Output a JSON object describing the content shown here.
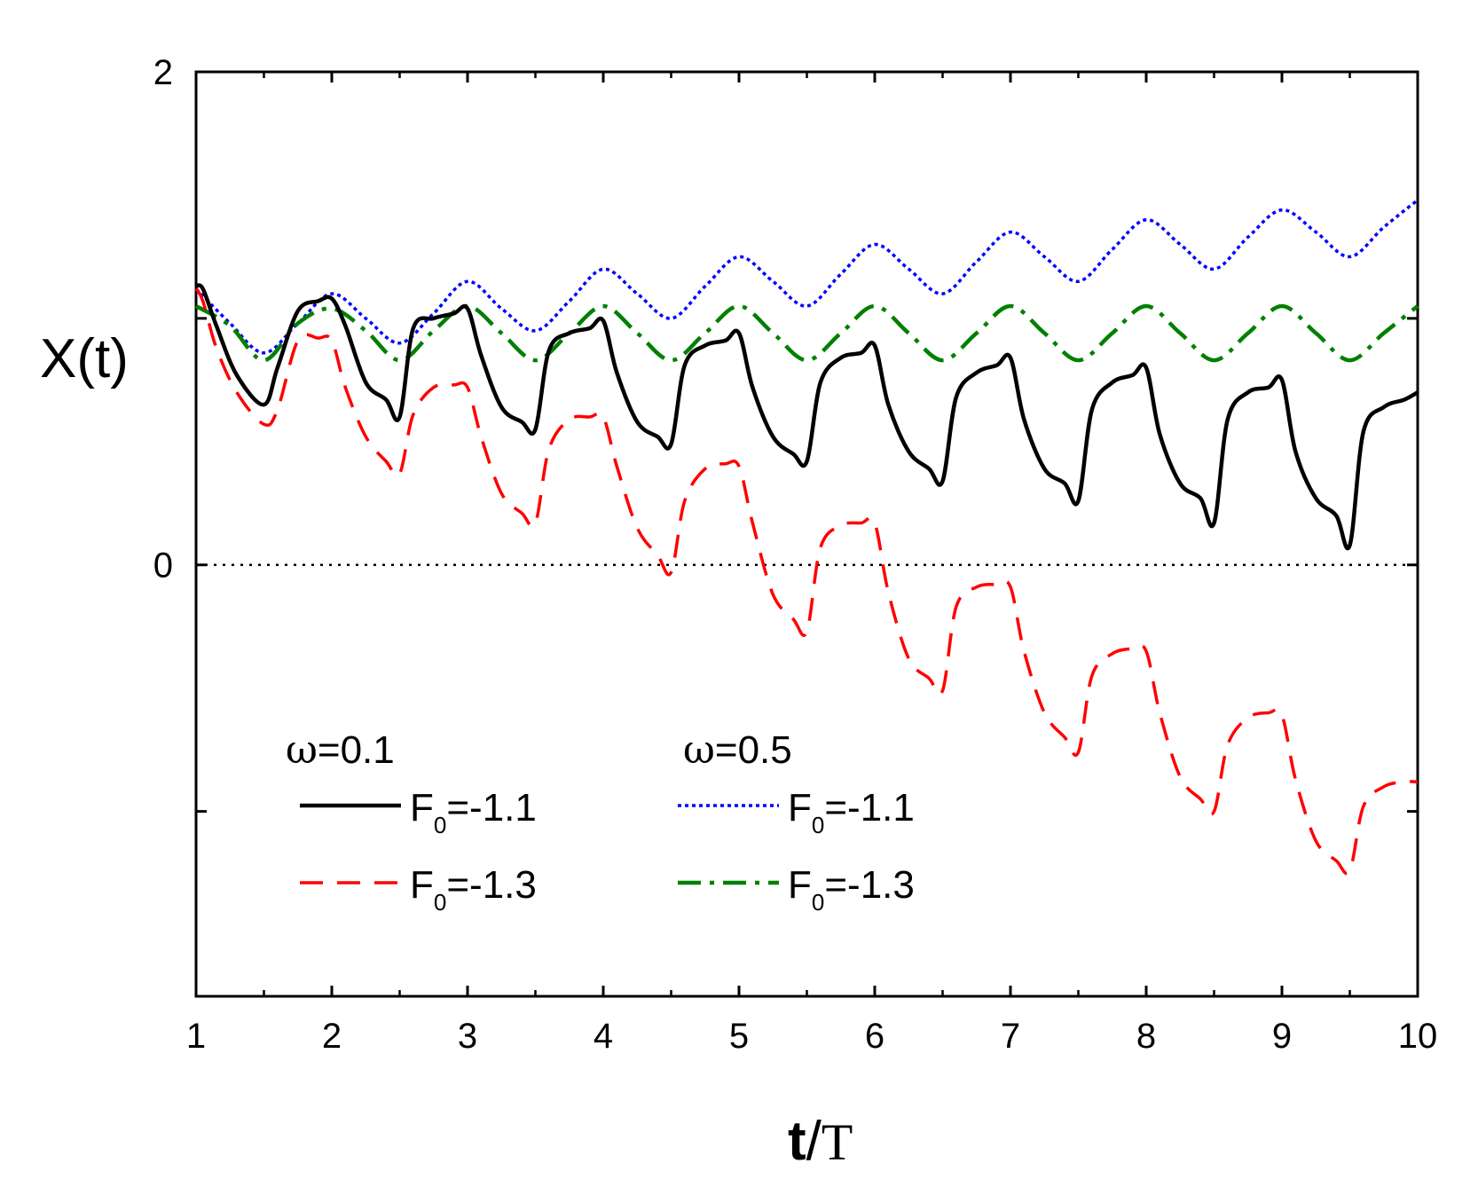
{
  "chart_data": {
    "type": "line",
    "xlabel": {
      "main": "t",
      "slash": "/",
      "serif": "T"
    },
    "ylabel": "X(t)",
    "xlim": [
      1,
      10
    ],
    "ylim": [
      -1.75,
      2
    ],
    "xticks": [
      1,
      2,
      3,
      4,
      5,
      6,
      7,
      8,
      9,
      10
    ],
    "yticks_labeled": [
      0,
      2
    ],
    "yticks_minor": [
      -1,
      1
    ],
    "reference_line": {
      "y": 0,
      "style": "dotted",
      "color": "#000000"
    },
    "legend": {
      "groups": [
        {
          "header": {
            "symbol": "ω",
            "text": "=0.1"
          }
        },
        {
          "header": {
            "symbol": "ω",
            "text": "=0.5"
          }
        }
      ],
      "entry_prefix": "F",
      "entry_sub": "0"
    },
    "series": [
      {
        "name": "F0=-1.1, ω=0.1",
        "group": 0,
        "label_value": "=-1.1",
        "color": "#000000",
        "style": "solid",
        "x": [
          1.0,
          1.05,
          1.15,
          1.3,
          1.5,
          1.6,
          1.75,
          1.9,
          2.0,
          2.1,
          2.25,
          2.4,
          2.5,
          2.6,
          2.75,
          2.9,
          3.0,
          3.1,
          3.25,
          3.4,
          3.5,
          3.6,
          3.75,
          3.9,
          4.0,
          4.1,
          4.25,
          4.4,
          4.5,
          4.6,
          4.75,
          4.9,
          5.0,
          5.1,
          5.25,
          5.4,
          5.5,
          5.6,
          5.75,
          5.9,
          6.0,
          6.1,
          6.25,
          6.4,
          6.5,
          6.6,
          6.75,
          6.9,
          7.0,
          7.1,
          7.25,
          7.4,
          7.5,
          7.6,
          7.75,
          7.9,
          8.0,
          8.1,
          8.25,
          8.4,
          8.5,
          8.6,
          8.75,
          8.9,
          9.0,
          9.1,
          9.25,
          9.4,
          9.5,
          9.6,
          9.75,
          9.9,
          10.0
        ],
        "y": [
          1.13,
          1.12,
          0.97,
          0.77,
          0.65,
          0.8,
          1.03,
          1.07,
          1.08,
          0.97,
          0.74,
          0.67,
          0.6,
          0.96,
          1.0,
          1.02,
          1.04,
          0.85,
          0.64,
          0.58,
          0.55,
          0.87,
          0.94,
          0.96,
          0.99,
          0.78,
          0.58,
          0.52,
          0.49,
          0.81,
          0.89,
          0.91,
          0.94,
          0.72,
          0.52,
          0.45,
          0.42,
          0.74,
          0.84,
          0.86,
          0.89,
          0.65,
          0.46,
          0.39,
          0.34,
          0.68,
          0.78,
          0.81,
          0.84,
          0.59,
          0.39,
          0.33,
          0.26,
          0.63,
          0.74,
          0.77,
          0.8,
          0.53,
          0.33,
          0.27,
          0.17,
          0.59,
          0.7,
          0.72,
          0.75,
          0.46,
          0.27,
          0.2,
          0.08,
          0.54,
          0.64,
          0.67,
          0.7
        ]
      },
      {
        "name": "F0=-1.3, ω=0.1",
        "group": 0,
        "label_value": "=-1.3",
        "color": "#ff0000",
        "style": "dashed",
        "x": [
          1.0,
          1.05,
          1.15,
          1.3,
          1.5,
          1.6,
          1.75,
          1.9,
          2.0,
          2.1,
          2.25,
          2.4,
          2.5,
          2.6,
          2.75,
          2.9,
          3.0,
          3.1,
          3.25,
          3.4,
          3.5,
          3.6,
          3.75,
          3.9,
          4.0,
          4.1,
          4.25,
          4.4,
          4.5,
          4.6,
          4.75,
          4.9,
          5.0,
          5.1,
          5.25,
          5.4,
          5.5,
          5.6,
          5.75,
          5.9,
          6.0,
          6.1,
          6.25,
          6.4,
          6.5,
          6.6,
          6.75,
          6.9,
          7.0,
          7.1,
          7.25,
          7.4,
          7.5,
          7.6,
          7.75,
          7.9,
          8.0,
          8.1,
          8.25,
          8.4,
          8.5,
          8.6,
          8.75,
          8.9,
          9.0,
          9.1,
          9.25,
          9.4,
          9.5,
          9.6,
          9.75,
          9.9,
          10.0
        ],
        "y": [
          1.12,
          1.07,
          0.88,
          0.7,
          0.57,
          0.63,
          0.91,
          0.92,
          0.91,
          0.72,
          0.52,
          0.42,
          0.37,
          0.61,
          0.72,
          0.73,
          0.72,
          0.52,
          0.29,
          0.21,
          0.17,
          0.47,
          0.59,
          0.6,
          0.6,
          0.4,
          0.15,
          0.04,
          -0.03,
          0.26,
          0.39,
          0.41,
          0.4,
          0.17,
          -0.12,
          -0.22,
          -0.27,
          0.07,
          0.16,
          0.17,
          0.17,
          -0.11,
          -0.38,
          -0.46,
          -0.51,
          -0.17,
          -0.09,
          -0.08,
          -0.09,
          -0.35,
          -0.6,
          -0.7,
          -0.76,
          -0.45,
          -0.36,
          -0.34,
          -0.35,
          -0.6,
          -0.86,
          -0.95,
          -1.0,
          -0.73,
          -0.62,
          -0.6,
          -0.61,
          -0.87,
          -1.12,
          -1.2,
          -1.24,
          -0.98,
          -0.9,
          -0.88,
          -0.88
        ]
      },
      {
        "name": "F0=-1.1, ω=0.5",
        "group": 1,
        "label_value": "=-1.1",
        "color": "#0000ff",
        "style": "dotted",
        "x": [
          1.0,
          1.25,
          1.5,
          1.75,
          2.0,
          2.25,
          2.5,
          2.75,
          3.0,
          3.25,
          3.5,
          3.75,
          4.0,
          4.25,
          4.5,
          4.75,
          5.0,
          5.25,
          5.5,
          5.75,
          6.0,
          6.25,
          6.5,
          6.75,
          7.0,
          7.25,
          7.5,
          7.75,
          8.0,
          8.25,
          8.5,
          8.75,
          9.0,
          9.25,
          9.5,
          9.75,
          10.0
        ],
        "y": [
          1.12,
          0.98,
          0.86,
          0.98,
          1.1,
          1.0,
          0.9,
          1.02,
          1.15,
          1.04,
          0.95,
          1.07,
          1.2,
          1.1,
          1.0,
          1.13,
          1.25,
          1.15,
          1.05,
          1.18,
          1.3,
          1.2,
          1.1,
          1.23,
          1.35,
          1.25,
          1.15,
          1.28,
          1.4,
          1.3,
          1.2,
          1.33,
          1.44,
          1.35,
          1.25,
          1.37,
          1.48
        ]
      },
      {
        "name": "F0=-1.3, ω=0.5",
        "group": 1,
        "label_value": "=-1.3",
        "color": "#008000",
        "style": "dashdot",
        "x": [
          1.0,
          1.25,
          1.5,
          1.75,
          2.0,
          2.25,
          2.5,
          2.75,
          3.0,
          3.25,
          3.5,
          3.75,
          4.0,
          4.25,
          4.5,
          4.75,
          5.0,
          5.25,
          5.5,
          5.75,
          6.0,
          6.25,
          6.5,
          6.75,
          7.0,
          7.25,
          7.5,
          7.75,
          8.0,
          8.25,
          8.5,
          8.75,
          9.0,
          9.25,
          9.5,
          9.75,
          10.0
        ],
        "y": [
          1.05,
          0.97,
          0.83,
          0.98,
          1.04,
          0.95,
          0.83,
          0.95,
          1.05,
          0.94,
          0.83,
          0.94,
          1.05,
          0.94,
          0.83,
          0.94,
          1.05,
          0.94,
          0.83,
          0.94,
          1.05,
          0.94,
          0.83,
          0.94,
          1.05,
          0.94,
          0.83,
          0.94,
          1.05,
          0.94,
          0.83,
          0.94,
          1.05,
          0.94,
          0.83,
          0.94,
          1.05
        ]
      }
    ]
  }
}
